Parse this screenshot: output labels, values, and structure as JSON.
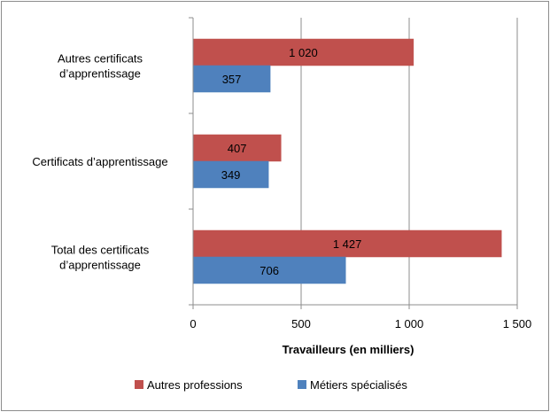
{
  "chart_data": {
    "type": "bar",
    "orientation": "horizontal",
    "title": "",
    "categories": [
      [
        "Autres certificats",
        "d’apprentissage"
      ],
      [
        "Certificats d’apprentissage"
      ],
      [
        "Total des certificats",
        "d’apprentissage"
      ]
    ],
    "series": [
      {
        "name": "Autres professions",
        "color": "#c0504d",
        "values": [
          1020,
          407,
          1427
        ],
        "labels": [
          "1 020",
          "407",
          "1 427"
        ]
      },
      {
        "name": "Métiers spécialisés",
        "color": "#4f81bd",
        "values": [
          357,
          349,
          706
        ],
        "labels": [
          "357",
          "349",
          "706"
        ]
      }
    ],
    "xlabel": "Travailleurs  (en milliers)",
    "ylabel": "",
    "xlim": [
      0,
      1500
    ],
    "xticks": [
      0,
      500,
      1000,
      1500
    ],
    "xtick_labels": [
      "0",
      "500",
      "1 000",
      "1 500"
    ],
    "grid": "vertical",
    "legend": "bottom"
  }
}
